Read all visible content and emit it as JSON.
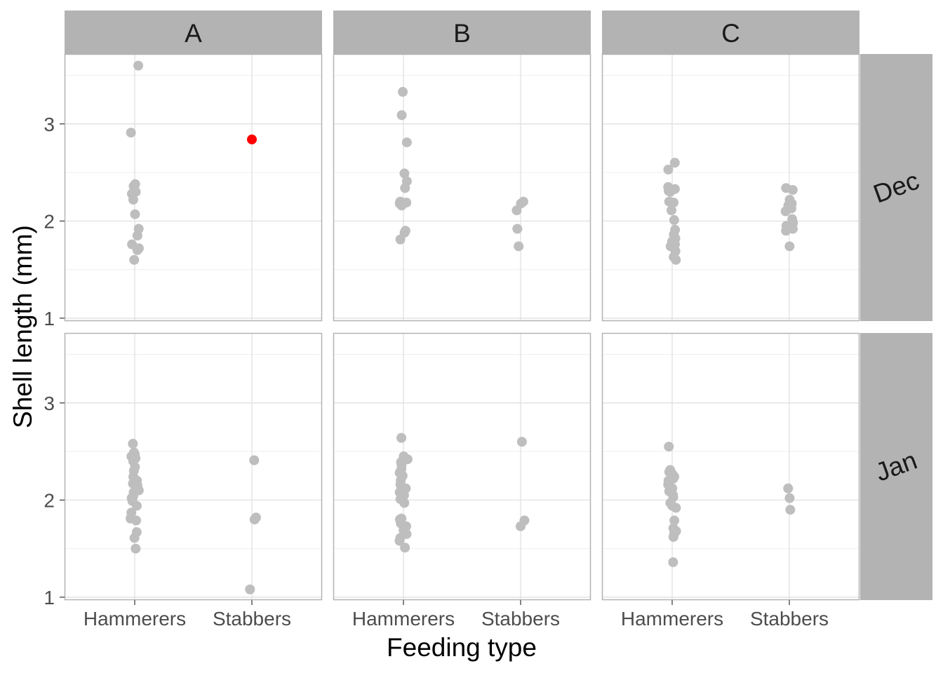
{
  "chart_data": {
    "type": "scatter",
    "facet_columns": [
      "A",
      "B",
      "C"
    ],
    "facet_rows": [
      "Dec",
      "Jan"
    ],
    "categories": [
      "Hammerers",
      "Stabbers"
    ],
    "xlabel": "Feeding type",
    "ylabel": "Shell length (mm)",
    "ylim": [
      0.97,
      3.72
    ],
    "yticks": [
      1,
      2,
      3
    ],
    "grid": true,
    "theme": "light",
    "colors": {
      "point": "#bebebe",
      "highlight": "#ff0000",
      "strip": "#b3b3b3",
      "grid": "#dedede",
      "border": "#b3b3b3"
    },
    "panels": [
      {
        "col": "A",
        "row": "Dec",
        "Hammerers": [
          3.6,
          2.91,
          2.38,
          2.36,
          2.33,
          2.3,
          2.28,
          2.22,
          2.07,
          1.92,
          1.85,
          1.76,
          1.72,
          1.7,
          1.6
        ],
        "Stabbers": [
          2.84
        ],
        "highlight": {
          "category": "Stabbers",
          "value": 2.84
        }
      },
      {
        "col": "B",
        "row": "Dec",
        "Hammerers": [
          3.33,
          3.09,
          2.81,
          2.49,
          2.41,
          2.34,
          2.2,
          2.19,
          2.18,
          2.16,
          1.9,
          1.88,
          1.81
        ],
        "Stabbers": [
          2.2,
          2.18,
          2.11,
          1.92,
          1.74
        ]
      },
      {
        "col": "C",
        "row": "Dec",
        "Hammerers": [
          2.6,
          2.53,
          2.35,
          2.33,
          2.31,
          2.3,
          2.2,
          2.19,
          2.11,
          2.01,
          1.91,
          1.86,
          1.82,
          1.79,
          1.76,
          1.74,
          1.69,
          1.63,
          1.6
        ],
        "Stabbers": [
          2.34,
          2.32,
          2.22,
          2.18,
          2.16,
          2.13,
          2.1,
          2.02,
          1.98,
          1.95,
          1.92,
          1.9,
          1.74
        ]
      },
      {
        "col": "A",
        "row": "Jan",
        "Hammerers": [
          2.58,
          2.49,
          2.47,
          2.45,
          2.43,
          2.4,
          2.34,
          2.3,
          2.24,
          2.2,
          2.17,
          2.15,
          2.13,
          2.1,
          2.08,
          2.04,
          2.02,
          1.99,
          1.94,
          1.87,
          1.81,
          1.79,
          1.67,
          1.61,
          1.5
        ],
        "Stabbers": [
          2.41,
          1.82,
          1.8,
          1.08
        ]
      },
      {
        "col": "B",
        "row": "Jan",
        "Hammerers": [
          2.64,
          2.45,
          2.42,
          2.39,
          2.36,
          2.32,
          2.28,
          2.25,
          2.2,
          2.16,
          2.12,
          2.08,
          2.05,
          2.01,
          1.97,
          1.81,
          1.8,
          1.76,
          1.73,
          1.69,
          1.65,
          1.61,
          1.58,
          1.51
        ],
        "Stabbers": [
          2.6,
          1.79,
          1.73
        ]
      },
      {
        "col": "C",
        "row": "Jan",
        "Hammerers": [
          2.55,
          2.31,
          2.29,
          2.27,
          2.24,
          2.22,
          2.2,
          2.16,
          2.12,
          2.09,
          2.05,
          2.03,
          1.97,
          1.94,
          1.92,
          1.79,
          1.71,
          1.68,
          1.65,
          1.62,
          1.36
        ],
        "Stabbers": [
          2.12,
          2.02,
          1.9
        ]
      }
    ]
  }
}
